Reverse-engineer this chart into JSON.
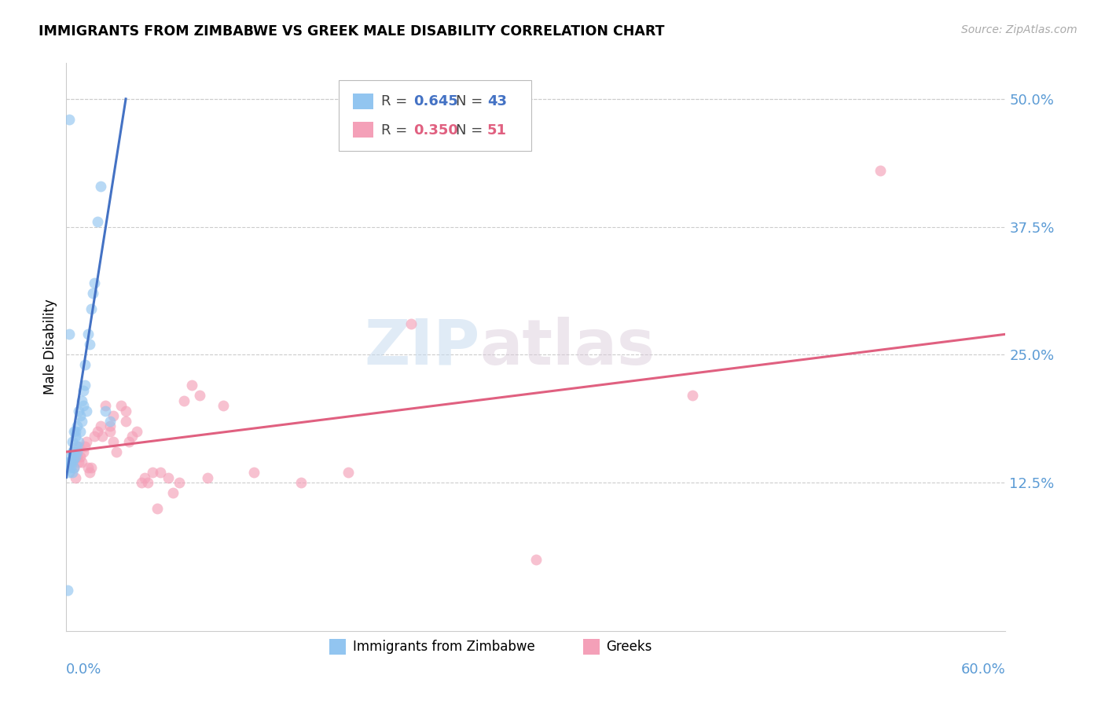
{
  "title": "IMMIGRANTS FROM ZIMBABWE VS GREEK MALE DISABILITY CORRELATION CHART",
  "source": "Source: ZipAtlas.com",
  "ylabel": "Male Disability",
  "ytick_labels": [
    "12.5%",
    "25.0%",
    "37.5%",
    "50.0%"
  ],
  "ytick_values": [
    0.125,
    0.25,
    0.375,
    0.5
  ],
  "xlim": [
    0.0,
    0.6
  ],
  "ylim": [
    -0.02,
    0.535
  ],
  "color_blue": "#92C5F0",
  "color_pink": "#F4A0B8",
  "color_blue_line": "#4472C4",
  "color_pink_line": "#E06080",
  "color_axis_labels": "#5B9BD5",
  "watermark_zip": "ZIP",
  "watermark_atlas": "atlas",
  "zimbabwe_x": [
    0.001,
    0.002,
    0.002,
    0.002,
    0.003,
    0.003,
    0.003,
    0.004,
    0.004,
    0.004,
    0.004,
    0.005,
    0.005,
    0.005,
    0.005,
    0.006,
    0.006,
    0.006,
    0.007,
    0.007,
    0.007,
    0.008,
    0.008,
    0.009,
    0.009,
    0.01,
    0.01,
    0.011,
    0.011,
    0.012,
    0.012,
    0.013,
    0.014,
    0.015,
    0.016,
    0.017,
    0.018,
    0.02,
    0.022,
    0.025,
    0.028,
    0.001,
    0.002
  ],
  "zimbabwe_y": [
    0.02,
    0.135,
    0.145,
    0.48,
    0.14,
    0.15,
    0.145,
    0.135,
    0.145,
    0.155,
    0.165,
    0.14,
    0.148,
    0.155,
    0.175,
    0.15,
    0.17,
    0.175,
    0.155,
    0.16,
    0.18,
    0.165,
    0.195,
    0.175,
    0.19,
    0.185,
    0.205,
    0.2,
    0.215,
    0.22,
    0.24,
    0.195,
    0.27,
    0.26,
    0.295,
    0.31,
    0.32,
    0.38,
    0.415,
    0.195,
    0.185,
    0.145,
    0.27
  ],
  "greeks_x": [
    0.003,
    0.005,
    0.006,
    0.007,
    0.008,
    0.008,
    0.009,
    0.01,
    0.011,
    0.012,
    0.013,
    0.014,
    0.015,
    0.016,
    0.018,
    0.02,
    0.022,
    0.023,
    0.025,
    0.028,
    0.028,
    0.03,
    0.03,
    0.032,
    0.035,
    0.038,
    0.038,
    0.04,
    0.042,
    0.045,
    0.048,
    0.05,
    0.052,
    0.055,
    0.058,
    0.06,
    0.065,
    0.068,
    0.072,
    0.075,
    0.08,
    0.085,
    0.09,
    0.1,
    0.12,
    0.15,
    0.18,
    0.22,
    0.3,
    0.52,
    0.4
  ],
  "greeks_y": [
    0.145,
    0.14,
    0.13,
    0.15,
    0.145,
    0.16,
    0.15,
    0.145,
    0.155,
    0.16,
    0.165,
    0.14,
    0.135,
    0.14,
    0.17,
    0.175,
    0.18,
    0.17,
    0.2,
    0.175,
    0.18,
    0.19,
    0.165,
    0.155,
    0.2,
    0.185,
    0.195,
    0.165,
    0.17,
    0.175,
    0.125,
    0.13,
    0.125,
    0.135,
    0.1,
    0.135,
    0.13,
    0.115,
    0.125,
    0.205,
    0.22,
    0.21,
    0.13,
    0.2,
    0.135,
    0.125,
    0.135,
    0.28,
    0.05,
    0.43,
    0.21
  ],
  "zim_line_x": [
    0.0,
    0.038
  ],
  "zim_line_y": [
    0.13,
    0.5
  ],
  "grk_line_x": [
    0.0,
    0.6
  ],
  "grk_line_y": [
    0.155,
    0.27
  ]
}
